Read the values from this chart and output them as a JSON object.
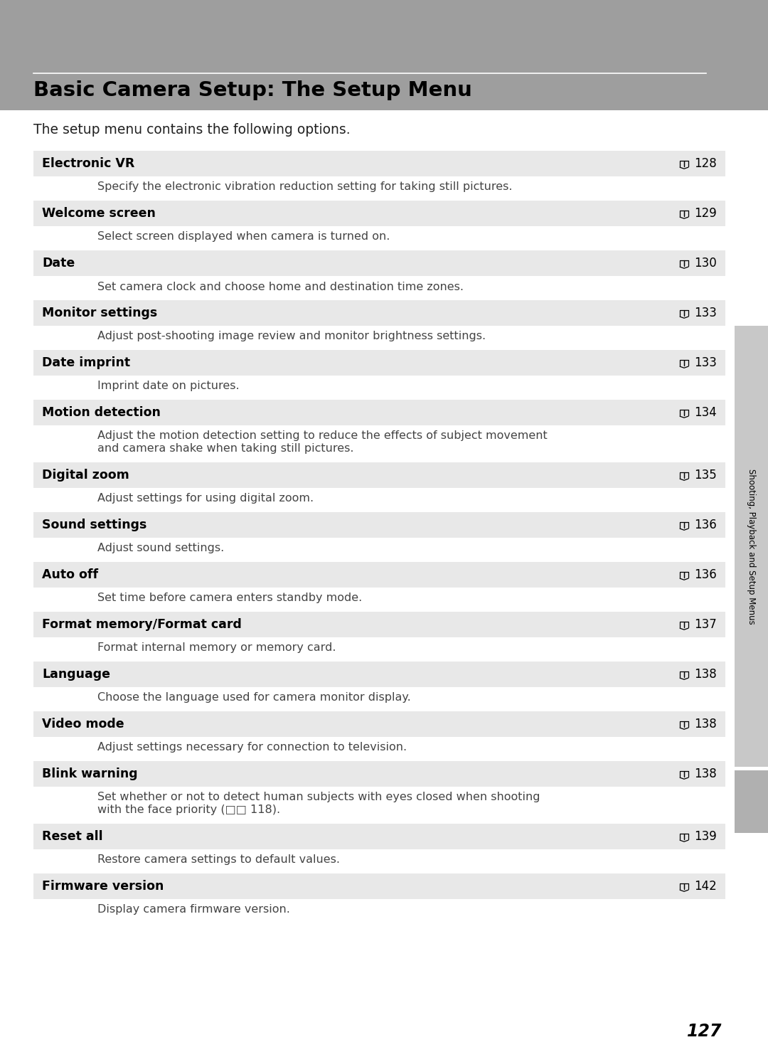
{
  "title": "Basic Camera Setup: The Setup Menu",
  "intro": "The setup menu contains the following options.",
  "page_number": "127",
  "header_bg": "#9e9e9e",
  "row_bg": "#e8e8e8",
  "white_bg": "#ffffff",
  "sidebar_text": "Shooting, Playback and Setup Menus",
  "sidebar_bg": "#c8c8c8",
  "sidebar_small_bg": "#b0b0b0",
  "title_color": "#000000",
  "desc_color": "#444444",
  "entries": [
    {
      "title": "Electronic VR",
      "page": "128",
      "desc": "Specify the electronic vibration reduction setting for taking still pictures.",
      "desc2": null
    },
    {
      "title": "Welcome screen",
      "page": "129",
      "desc": "Select screen displayed when camera is turned on.",
      "desc2": null
    },
    {
      "title": "Date",
      "page": "130",
      "desc": "Set camera clock and choose home and destination time zones.",
      "desc2": null
    },
    {
      "title": "Monitor settings",
      "page": "133",
      "desc": "Adjust post-shooting image review and monitor brightness settings.",
      "desc2": null
    },
    {
      "title": "Date imprint",
      "page": "133",
      "desc": "Imprint date on pictures.",
      "desc2": null
    },
    {
      "title": "Motion detection",
      "page": "134",
      "desc": "Adjust the motion detection setting to reduce the effects of subject movement\nand camera shake when taking still pictures.",
      "desc2": null
    },
    {
      "title": "Digital zoom",
      "page": "135",
      "desc": "Adjust settings for using digital zoom.",
      "desc2": null
    },
    {
      "title": "Sound settings",
      "page": "136",
      "desc": "Adjust sound settings.",
      "desc2": null
    },
    {
      "title": "Auto off",
      "page": "136",
      "desc": "Set time before camera enters standby mode.",
      "desc2": null
    },
    {
      "title": "Format memory/Format card",
      "page": "137",
      "desc": "Format internal memory or memory card.",
      "desc2": null
    },
    {
      "title": "Language",
      "page": "138",
      "desc": "Choose the language used for camera monitor display.",
      "desc2": null
    },
    {
      "title": "Video mode",
      "page": "138",
      "desc": "Adjust settings necessary for connection to television.",
      "desc2": null
    },
    {
      "title": "Blink warning",
      "page": "138",
      "desc": "Set whether or not to detect human subjects with eyes closed when shooting\nwith the face priority (□□ 118).",
      "desc2": null
    },
    {
      "title": "Reset all",
      "page": "139",
      "desc": "Restore camera settings to default values.",
      "desc2": null
    },
    {
      "title": "Firmware version",
      "page": "142",
      "desc": "Display camera firmware version.",
      "desc2": null
    }
  ]
}
